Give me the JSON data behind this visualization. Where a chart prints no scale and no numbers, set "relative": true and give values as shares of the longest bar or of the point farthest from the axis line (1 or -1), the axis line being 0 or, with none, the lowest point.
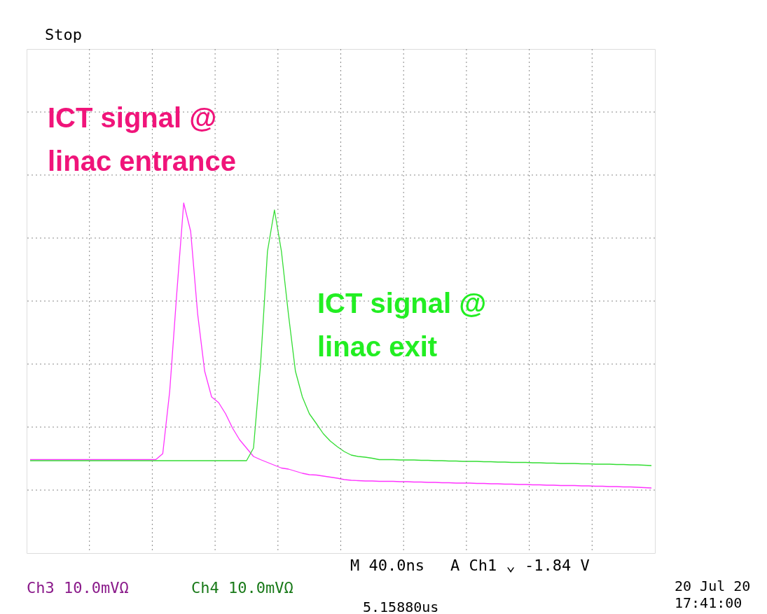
{
  "chart_data": {
    "type": "line",
    "relative": true,
    "grid": true,
    "categories": [
      null,
      null,
      null,
      null,
      null,
      null,
      null,
      null,
      null,
      null,
      null,
      null,
      null,
      null,
      null,
      null,
      null,
      null,
      null,
      null,
      null,
      null,
      null,
      null,
      null,
      null,
      null,
      null,
      null,
      null,
      null,
      null,
      null,
      null,
      null,
      null,
      null,
      null,
      null,
      null,
      null,
      null,
      null,
      null,
      null,
      null,
      null,
      null,
      null,
      null,
      null,
      null,
      null,
      null,
      null,
      null,
      null,
      null,
      null,
      null,
      null,
      null,
      null,
      null,
      null,
      null,
      null,
      null,
      null,
      null,
      null,
      null,
      null,
      null,
      null,
      null,
      null,
      null,
      null,
      null,
      null,
      null,
      null,
      null,
      null,
      null,
      null,
      null,
      null,
      null
    ],
    "series": [
      {
        "color": "#ff33ff",
        "values": [
          0.267,
          0.267,
          0.267,
          0.267,
          0.267,
          0.267,
          0.267,
          0.267,
          0.267,
          0.267,
          0.267,
          0.267,
          0.267,
          0.267,
          0.267,
          0.267,
          0.267,
          0.267,
          0.267,
          0.284,
          0.463,
          0.74,
          1,
          0.919,
          0.683,
          0.52,
          0.446,
          0.43,
          0.398,
          0.357,
          0.324,
          0.3,
          0.276,
          0.267,
          0.259,
          0.251,
          0.243,
          0.24,
          0.234,
          0.228,
          0.224,
          0.223,
          0.22,
          0.217,
          0.214,
          0.21,
          0.208,
          0.207,
          0.206,
          0.206,
          0.205,
          0.205,
          0.205,
          0.204,
          0.204,
          0.203,
          0.203,
          0.202,
          0.202,
          0.201,
          0.201,
          0.2,
          0.2,
          0.2,
          0.199,
          0.199,
          0.198,
          0.198,
          0.197,
          0.197,
          0.196,
          0.196,
          0.195,
          0.195,
          0.194,
          0.194,
          0.193,
          0.193,
          0.193,
          0.192,
          0.192,
          0.191,
          0.191,
          0.19,
          0.19,
          0.189,
          0.189,
          0.188,
          0.187,
          0.186
        ]
      },
      {
        "color": "#33dd33",
        "values": [
          0.264,
          0.264,
          0.264,
          0.264,
          0.264,
          0.264,
          0.264,
          0.264,
          0.264,
          0.264,
          0.264,
          0.264,
          0.264,
          0.264,
          0.264,
          0.264,
          0.264,
          0.264,
          0.264,
          0.264,
          0.264,
          0.264,
          0.264,
          0.264,
          0.264,
          0.264,
          0.264,
          0.264,
          0.264,
          0.264,
          0.264,
          0.264,
          0.3,
          0.536,
          0.862,
          0.98,
          0.862,
          0.683,
          0.52,
          0.446,
          0.398,
          0.37,
          0.341,
          0.32,
          0.304,
          0.29,
          0.28,
          0.276,
          0.274,
          0.271,
          0.267,
          0.267,
          0.267,
          0.266,
          0.266,
          0.266,
          0.265,
          0.265,
          0.264,
          0.264,
          0.263,
          0.263,
          0.262,
          0.262,
          0.262,
          0.261,
          0.261,
          0.26,
          0.26,
          0.259,
          0.259,
          0.259,
          0.258,
          0.258,
          0.257,
          0.257,
          0.256,
          0.256,
          0.256,
          0.255,
          0.255,
          0.254,
          0.254,
          0.254,
          0.253,
          0.253,
          0.252,
          0.252,
          0.251,
          0.25
        ]
      }
    ],
    "annotations": [
      "ICT signal @ linac entrance",
      "ICT signal @ linac exit",
      "Stop",
      "M 40.0ns",
      "A Ch1 ⌄ -1.84 V",
      "Ch3 10.0mVΩ",
      "Ch4 10.0mVΩ",
      "5.15880us",
      "20 Jul 20",
      "17:41:00"
    ]
  }
}
